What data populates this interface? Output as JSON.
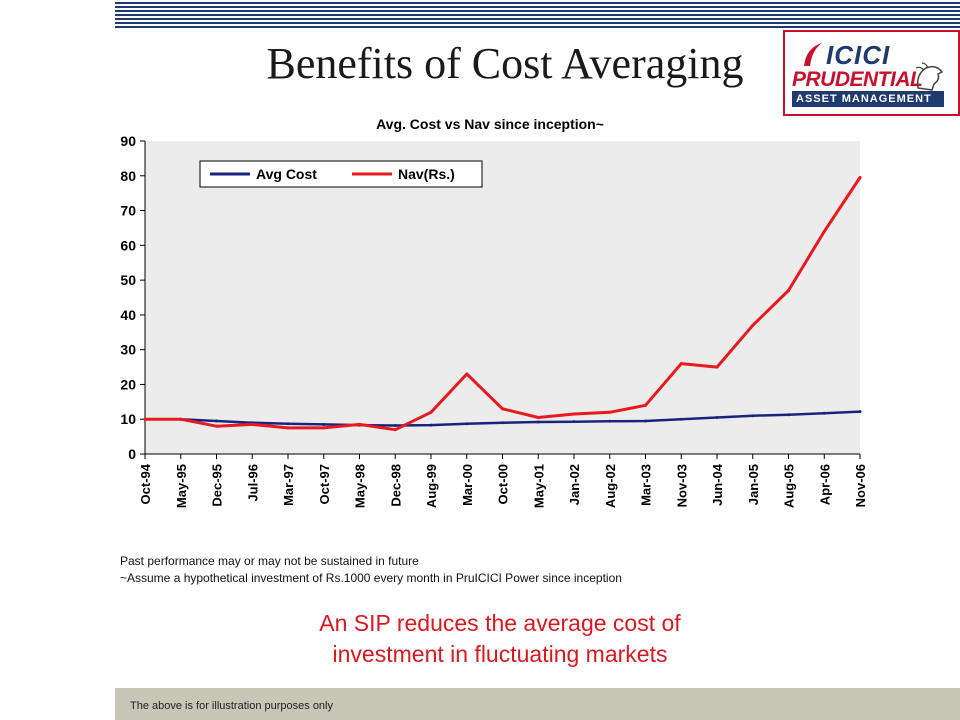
{
  "slide": {
    "title": "Benefits of Cost Averaging",
    "disclaimer_1": "Past performance may or may not be sustained in future",
    "disclaimer_2": "~Assume a hypothetical investment of Rs.1000 every month in PruICICI Power since inception",
    "message_line1": "An SIP reduces the average cost of",
    "message_line2": "investment in fluctuating markets",
    "footer": "The above is for illustration purposes only"
  },
  "logo": {
    "line1": "ICICI",
    "line2": "PRUDENTIAL",
    "line3": "ASSET MANAGEMENT",
    "colors": {
      "navy": "#1f3a6e",
      "red": "#c8102e"
    }
  },
  "chart_data": {
    "type": "line",
    "title": "Avg. Cost vs Nav since inception~",
    "xlabel": "",
    "ylabel": "",
    "ylim": [
      0,
      90
    ],
    "yticks": [
      0,
      10,
      20,
      30,
      40,
      50,
      60,
      70,
      80,
      90
    ],
    "categories": [
      "Oct-94",
      "May-95",
      "Dec-95",
      "Jul-96",
      "Mar-97",
      "Oct-97",
      "May-98",
      "Dec-98",
      "Aug-99",
      "Mar-00",
      "Oct-00",
      "May-01",
      "Jan-02",
      "Aug-02",
      "Mar-03",
      "Nov-03",
      "Jun-04",
      "Jan-05",
      "Aug-05",
      "Apr-06",
      "Nov-06"
    ],
    "legend_position": "top-left",
    "grid": false,
    "series": [
      {
        "name": "Avg Cost",
        "color": "#1a237e",
        "values": [
          10,
          10,
          9.5,
          9,
          8.7,
          8.5,
          8.3,
          8.2,
          8.3,
          8.7,
          9,
          9.2,
          9.3,
          9.4,
          9.5,
          10,
          10.5,
          11,
          11.3,
          11.7,
          12.2
        ]
      },
      {
        "name": "Nav(Rs.)",
        "color": "#e8191f",
        "values": [
          10,
          10,
          8,
          8.5,
          7.5,
          7.5,
          8.5,
          7,
          12,
          23,
          13,
          10.5,
          11.5,
          12,
          14,
          26,
          25,
          37,
          47,
          64,
          79.5
        ]
      }
    ]
  }
}
